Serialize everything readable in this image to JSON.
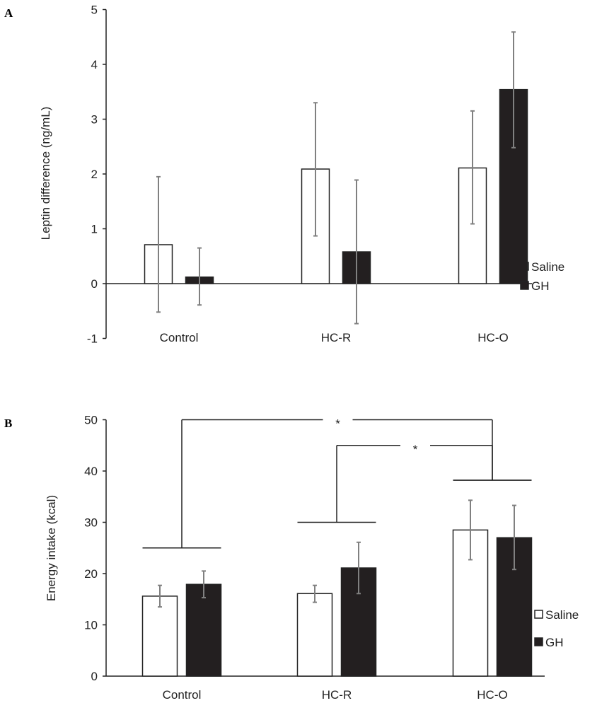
{
  "chart_data": [
    {
      "panel": "A",
      "type": "bar",
      "ylabel": "Leptin difference (ng/mL)",
      "ylim": [
        -1,
        5
      ],
      "yticks": [
        "-1",
        "0",
        "1",
        "2",
        "3",
        "4",
        "5"
      ],
      "categories": [
        "Control",
        "HC-R",
        "HC-O"
      ],
      "legend_position": "right",
      "series": [
        {
          "name": "Saline",
          "color": "#ffffff",
          "values": [
            0.71,
            2.09,
            2.11
          ],
          "err_high": [
            1.95,
            3.3,
            3.15
          ],
          "err_low": [
            -0.52,
            0.87,
            1.09
          ]
        },
        {
          "name": "GH",
          "color": "#231f20",
          "values": [
            0.12,
            0.58,
            3.54
          ],
          "err_high": [
            0.65,
            1.89,
            4.59
          ],
          "err_low": [
            -0.39,
            -0.73,
            2.48
          ]
        }
      ]
    },
    {
      "panel": "B",
      "type": "bar",
      "ylabel": "Energy intake (kcal)",
      "ylim": [
        0,
        50
      ],
      "yticks": [
        "0",
        "10",
        "20",
        "30",
        "40",
        "50"
      ],
      "categories": [
        "Control",
        "HC-R",
        "HC-O"
      ],
      "legend_position": "right",
      "series": [
        {
          "name": "Saline",
          "color": "#ffffff",
          "values": [
            15.6,
            16.1,
            28.5
          ],
          "err_high": [
            17.7,
            17.7,
            34.3
          ],
          "err_low": [
            13.5,
            14.4,
            22.7
          ]
        },
        {
          "name": "GH",
          "color": "#231f20",
          "values": [
            17.9,
            21.1,
            27.0
          ],
          "err_high": [
            20.5,
            26.1,
            33.3
          ],
          "err_low": [
            15.3,
            16.1,
            20.8
          ]
        }
      ],
      "significance": [
        {
          "from": "Control",
          "to": "HC-O",
          "label": "*",
          "group_levels": [
            25,
            38.2
          ],
          "top": 50
        },
        {
          "from": "HC-R",
          "to": "HC-O",
          "label": "*",
          "group_levels": [
            30,
            38.2
          ],
          "top": 45
        }
      ]
    }
  ]
}
